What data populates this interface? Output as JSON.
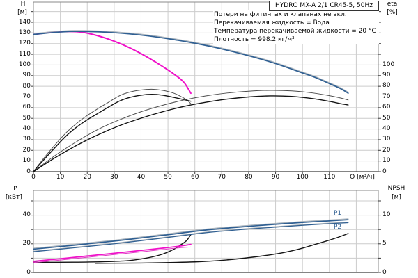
{
  "header": {
    "title": "HYDRO MX-A 2/1 CR45-5, 50Hz"
  },
  "annotations": [
    "Потери на фитингах и клапанах не вкл.",
    "Перекачиваемая жидкость = Вода",
    "Температура перекачиваемой жидкости = 20 °C",
    "Плотность = 998.2 кг/м³"
  ],
  "colors": {
    "blue": "#2f5f92",
    "halo": "#a9b2ba",
    "magenta": "#f011c9",
    "magenta2": "#e03ac4",
    "black": "#141414",
    "pairmate": "#4d4d4d",
    "grid": "#cccccc",
    "border": "#8a8a8a",
    "axis": "#3a3a3a"
  },
  "chart_data": [
    {
      "type": "line",
      "title": "HYDRO MX-A 2/1 CR45-5, 50Hz",
      "x_axis": {
        "label": "Q [м³/ч]",
        "min": 0,
        "max": 128,
        "tick_step": 10,
        "tick_labels": [
          0,
          10,
          20,
          30,
          40,
          50,
          60,
          70,
          80,
          90,
          100,
          110
        ]
      },
      "y_axis_left": {
        "label": "H",
        "unit": "[м]",
        "key": "H",
        "min": 0,
        "max": 158,
        "tick_labels": [
          0,
          10,
          20,
          30,
          40,
          50,
          60,
          70,
          80,
          90,
          100,
          110,
          120,
          130,
          140
        ]
      },
      "y_axis_right": {
        "label": "eta",
        "unit": "[%]",
        "key": "eta",
        "min": 0,
        "max": 103,
        "tick_labels": [
          0,
          10,
          20,
          30,
          40,
          50,
          60,
          70,
          80,
          90,
          100
        ]
      },
      "grid": true,
      "series": [
        {
          "name": "eta-1-pump-upper",
          "axis": "eta",
          "color": "pairmate",
          "width": 1,
          "points": [
            [
              0,
              0
            ],
            [
              4,
              13
            ],
            [
              8,
              25
            ],
            [
              12,
              36
            ],
            [
              16,
              45
            ],
            [
              20,
              52.5
            ],
            [
              24,
              59
            ],
            [
              28,
              65
            ],
            [
              32,
              71
            ],
            [
              36,
              74.5
            ],
            [
              40,
              76.3
            ],
            [
              44,
              77
            ],
            [
              48,
              76
            ],
            [
              52,
              73.5
            ],
            [
              55,
              70
            ],
            [
              57,
              67
            ],
            [
              58.5,
              63.5
            ]
          ]
        },
        {
          "name": "eta-1-pump-lower",
          "axis": "eta",
          "color": "black",
          "width": 1.4,
          "points": [
            [
              0,
              0
            ],
            [
              4,
              11.5
            ],
            [
              8,
              22.5
            ],
            [
              12,
              33
            ],
            [
              16,
              41.5
            ],
            [
              20,
              48.5
            ],
            [
              24,
              54.5
            ],
            [
              28,
              60.5
            ],
            [
              32,
              66
            ],
            [
              36,
              69.5
            ],
            [
              40,
              71.5
            ],
            [
              44,
              72.3
            ],
            [
              48,
              71.5
            ],
            [
              52,
              69.5
            ],
            [
              55,
              67.8
            ],
            [
              58.5,
              65.8
            ]
          ]
        },
        {
          "name": "eta-2-pumps-upper",
          "axis": "eta",
          "color": "pairmate",
          "width": 1,
          "points": [
            [
              0,
              0
            ],
            [
              8,
              15
            ],
            [
              16,
              28
            ],
            [
              24,
              39.5
            ],
            [
              32,
              48.5
            ],
            [
              40,
              56
            ],
            [
              48,
              62
            ],
            [
              56,
              67
            ],
            [
              64,
              70.8
            ],
            [
              72,
              73.5
            ],
            [
              80,
              75.2
            ],
            [
              88,
              76
            ],
            [
              96,
              75.5
            ],
            [
              104,
              73.5
            ],
            [
              110,
              71
            ],
            [
              114,
              68.9
            ],
            [
              117,
              67
            ]
          ]
        },
        {
          "name": "eta-2-pumps-lower",
          "axis": "eta",
          "color": "black",
          "width": 1.4,
          "points": [
            [
              0,
              0
            ],
            [
              8,
              13
            ],
            [
              16,
              24.5
            ],
            [
              24,
              34.5
            ],
            [
              32,
              43
            ],
            [
              40,
              50
            ],
            [
              48,
              56
            ],
            [
              56,
              61
            ],
            [
              64,
              64.8
            ],
            [
              72,
              67.8
            ],
            [
              80,
              69.8
            ],
            [
              88,
              70.8
            ],
            [
              96,
              70.3
            ],
            [
              104,
              68.2
            ],
            [
              110,
              65.7
            ],
            [
              114,
              63.6
            ],
            [
              117,
              62.3
            ]
          ]
        },
        {
          "name": "QH-1-pump",
          "axis": "H",
          "color": "magenta",
          "width": 2,
          "points": [
            [
              0,
              128.5
            ],
            [
              7,
              130.6
            ],
            [
              13,
              131.4
            ],
            [
              18,
              130.7
            ],
            [
              24,
              127.3
            ],
            [
              30,
              122.3
            ],
            [
              36,
              115.8
            ],
            [
              42,
              107.8
            ],
            [
              48,
              98.6
            ],
            [
              53,
              90
            ],
            [
              56,
              83.5
            ],
            [
              58.5,
              73.5
            ]
          ]
        },
        {
          "name": "QH-2-pumps",
          "axis": "H",
          "color": "blue",
          "width": 1.7,
          "halo": true,
          "points": [
            [
              0,
              128.5
            ],
            [
              8,
              130.5
            ],
            [
              15,
              131.4
            ],
            [
              22,
              131.2
            ],
            [
              30,
              130.2
            ],
            [
              40,
              128
            ],
            [
              50,
              124.6
            ],
            [
              60,
              120.3
            ],
            [
              70,
              115
            ],
            [
              80,
              108.6
            ],
            [
              90,
              101.3
            ],
            [
              100,
              92.5
            ],
            [
              105,
              88
            ],
            [
              110,
              82.5
            ],
            [
              114,
              78
            ],
            [
              117,
              73.5
            ]
          ]
        }
      ]
    },
    {
      "type": "line",
      "title": "",
      "x_axis": {
        "label": "",
        "min": 0,
        "max": 128,
        "tick_step": 10,
        "tick_labels": []
      },
      "y_axis_left": {
        "label": "P",
        "unit": "[кВт]",
        "key": "P",
        "min": 0,
        "max": 57,
        "tick_labels": [
          0,
          20,
          40
        ]
      },
      "y_axis_right": {
        "label": "NPSH",
        "unit": "[м]",
        "key": "NPSH",
        "min": 0,
        "max": 14.3,
        "tick_labels": [
          0,
          5,
          10
        ]
      },
      "grid": true,
      "series_labels": {
        "p1": "P1",
        "p2": "P2"
      },
      "series": [
        {
          "name": "NPSH-1-pump",
          "axis": "NPSH",
          "color": "black",
          "width": 1.4,
          "points": [
            [
              0,
              1.78
            ],
            [
              15,
              1.8
            ],
            [
              28,
              1.9
            ],
            [
              36,
              2.1
            ],
            [
              43,
              2.6
            ],
            [
              48,
              3.2
            ],
            [
              52,
              4.0
            ],
            [
              55,
              4.9
            ],
            [
              57,
              5.6
            ],
            [
              58.5,
              6.6
            ]
          ]
        },
        {
          "name": "NPSH-2-pumps",
          "axis": "NPSH",
          "color": "black",
          "width": 1.4,
          "points": [
            [
              23,
              1.6
            ],
            [
              40,
              1.65
            ],
            [
              60,
              1.85
            ],
            [
              72,
              2.2
            ],
            [
              82,
              2.7
            ],
            [
              91,
              3.3
            ],
            [
              98,
              4.0
            ],
            [
              104,
              4.8
            ],
            [
              109,
              5.5
            ],
            [
              113,
              6.1
            ],
            [
              117,
              6.8
            ]
          ]
        },
        {
          "name": "P-1-pump-lower",
          "axis": "P",
          "color": "magenta2",
          "width": 1,
          "points": [
            [
              0,
              6.9
            ],
            [
              10,
              8.7
            ],
            [
              20,
              10.6
            ],
            [
              30,
              12.5
            ],
            [
              40,
              14.4
            ],
            [
              48,
              16
            ],
            [
              54,
              17.2
            ],
            [
              58.5,
              17.8
            ]
          ]
        },
        {
          "name": "P-1-pump-upper",
          "axis": "P",
          "color": "magenta",
          "width": 1.8,
          "points": [
            [
              0,
              7.8
            ],
            [
              10,
              9.6
            ],
            [
              20,
              11.5
            ],
            [
              30,
              13.4
            ],
            [
              40,
              15.4
            ],
            [
              48,
              17
            ],
            [
              54,
              18.3
            ],
            [
              58.5,
              19.6
            ]
          ]
        },
        {
          "name": "P2",
          "axis": "P",
          "color": "halo",
          "width": 1.2,
          "points": [
            [
              0,
              14.9
            ],
            [
              15,
              17.6
            ],
            [
              30,
              20.4
            ],
            [
              45,
              23.7
            ],
            [
              55,
              26
            ],
            [
              65,
              28.3
            ],
            [
              80,
              30.7
            ],
            [
              90,
              32
            ],
            [
              100,
              33.3
            ],
            [
              110,
              34.4
            ],
            [
              117,
              35.1
            ]
          ]
        },
        {
          "name": "P2-line",
          "axis": "P",
          "color": "blue",
          "width": 1.2,
          "points": [
            [
              0,
              14.5
            ],
            [
              15,
              17.2
            ],
            [
              30,
              20
            ],
            [
              45,
              23.3
            ],
            [
              55,
              25.6
            ],
            [
              65,
              27.9
            ],
            [
              80,
              30.3
            ],
            [
              90,
              31.6
            ],
            [
              100,
              32.9
            ],
            [
              110,
              34
            ],
            [
              117,
              34.7
            ]
          ]
        },
        {
          "name": "P1",
          "axis": "P",
          "color": "blue",
          "width": 1.7,
          "halo": true,
          "points": [
            [
              0,
              16.3
            ],
            [
              15,
              19
            ],
            [
              30,
              21.9
            ],
            [
              45,
              25.2
            ],
            [
              55,
              27.5
            ],
            [
              65,
              29.8
            ],
            [
              80,
              32.2
            ],
            [
              90,
              33.6
            ],
            [
              100,
              34.9
            ],
            [
              110,
              36
            ],
            [
              117,
              36.8
            ]
          ]
        }
      ]
    }
  ]
}
